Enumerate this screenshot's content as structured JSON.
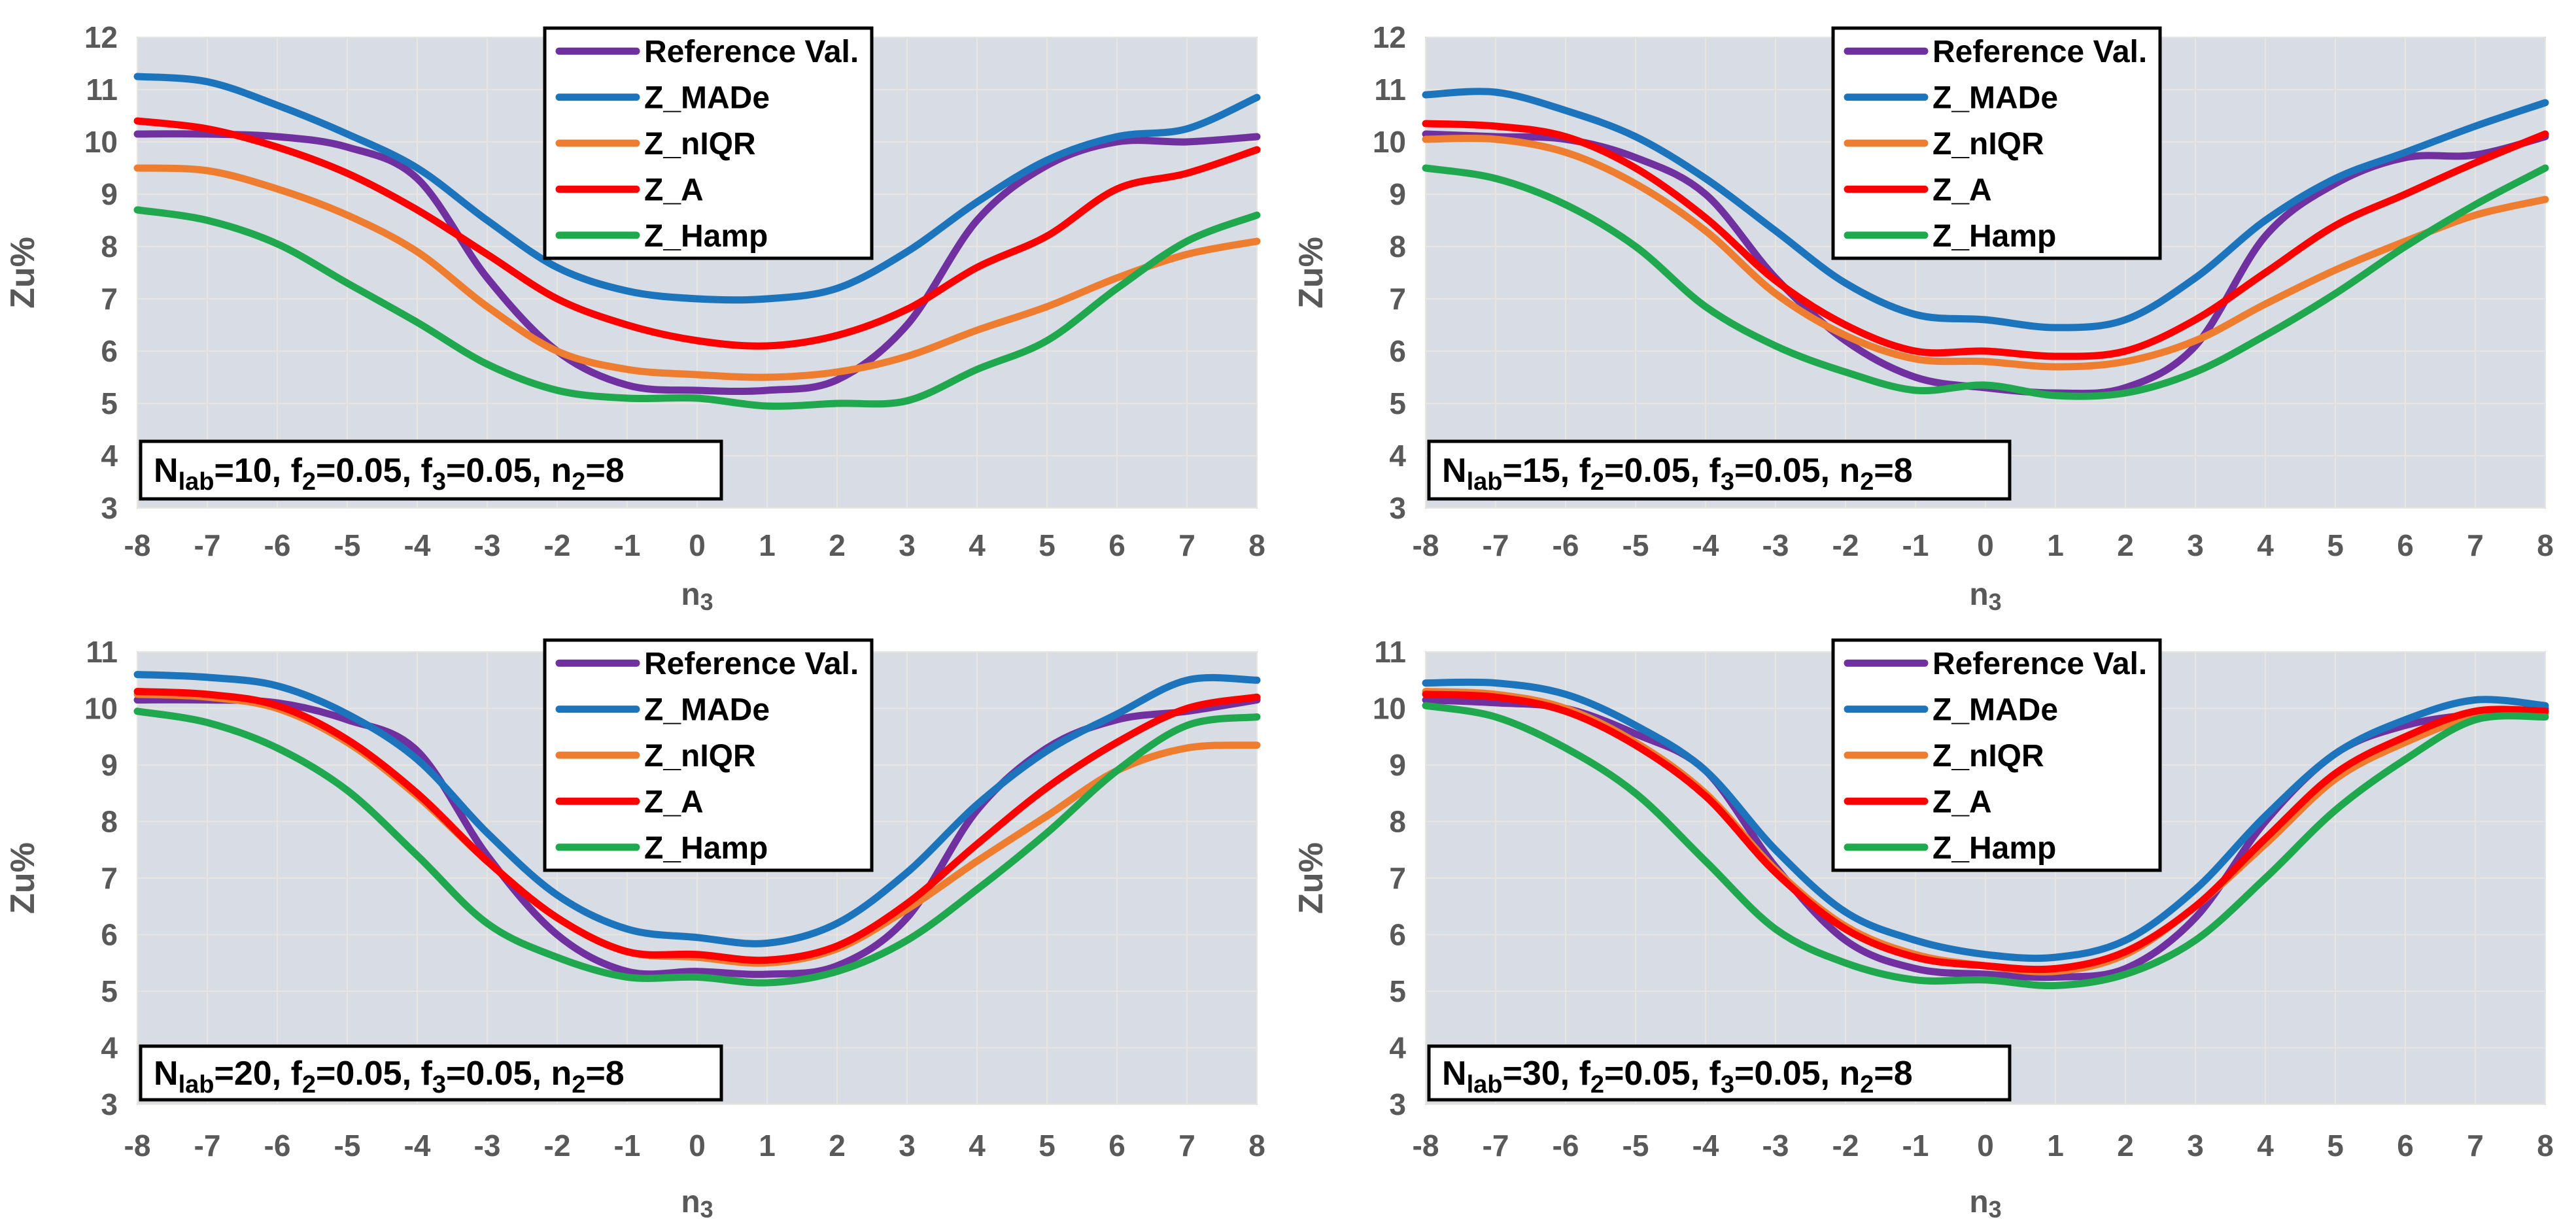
{
  "figure": {
    "rows": 2,
    "cols": 2,
    "plot_background": "#D7DCE5",
    "gridline_color": "#E8E5DE",
    "plot_border_color": "#C3C8D2",
    "tick_text_color": "#595959",
    "legend_border_color": "#000000",
    "legend_background": "#FFFFFF",
    "annotation_border_color": "#000000",
    "annotation_background": "#FFFFFF"
  },
  "series_colors": {
    "reference": "#7030A0",
    "z_made": "#1C75BC",
    "z_niqr": "#EE7D2F",
    "z_a": "#FE0000",
    "z_hamp": "#1FA84D"
  },
  "chart_data": [
    {
      "type": "line",
      "id": "nlab-10",
      "annotation_text": "Nlab=10, f2=0.05, f3=0.05, n2=8",
      "annotation_parts": [
        {
          "t": "N"
        },
        {
          "t": "lab",
          "sub": true
        },
        {
          "t": "=10, f"
        },
        {
          "t": "2",
          "sub": true
        },
        {
          "t": "=0.05, f"
        },
        {
          "t": "3",
          "sub": true
        },
        {
          "t": "=0.05, n"
        },
        {
          "t": "2",
          "sub": true
        },
        {
          "t": "=8"
        }
      ],
      "xlabel": "n3",
      "xlabel_base": "n",
      "xlabel_sub": "3",
      "ylabel": "Zu%",
      "ylim": [
        3,
        12
      ],
      "yticks": [
        12,
        11,
        10,
        9,
        8,
        7,
        6,
        5,
        4,
        3
      ],
      "x": [
        -8,
        -7,
        -6,
        -5,
        -4,
        -3,
        -2,
        -1,
        0,
        1,
        2,
        3,
        4,
        5,
        6,
        7,
        8
      ],
      "series": [
        {
          "name": "Reference Val.",
          "color": "#7030A0",
          "values": [
            10.15,
            10.15,
            10.1,
            9.9,
            9.3,
            7.4,
            6.0,
            5.35,
            5.25,
            5.25,
            5.45,
            6.5,
            8.5,
            9.55,
            10.0,
            10.0,
            10.1
          ]
        },
        {
          "name": "Z_MADe",
          "color": "#1C75BC",
          "values": [
            11.25,
            11.15,
            10.7,
            10.15,
            9.5,
            8.5,
            7.6,
            7.15,
            7.0,
            7.0,
            7.2,
            7.9,
            8.85,
            9.65,
            10.1,
            10.25,
            10.85
          ]
        },
        {
          "name": "Z_nIQR",
          "color": "#EE7D2F",
          "values": [
            9.5,
            9.45,
            9.1,
            8.6,
            7.9,
            6.85,
            6.0,
            5.65,
            5.55,
            5.5,
            5.6,
            5.9,
            6.4,
            6.85,
            7.4,
            7.85,
            8.1
          ]
        },
        {
          "name": "Z_A",
          "color": "#FE0000",
          "values": [
            10.4,
            10.25,
            9.9,
            9.4,
            8.7,
            7.85,
            7.0,
            6.5,
            6.2,
            6.1,
            6.3,
            6.8,
            7.6,
            8.2,
            9.1,
            9.4,
            9.85
          ]
        },
        {
          "name": "Z_Hamp",
          "color": "#1FA84D",
          "values": [
            8.7,
            8.5,
            8.05,
            7.3,
            6.55,
            5.75,
            5.25,
            5.1,
            5.1,
            4.95,
            5.0,
            5.05,
            5.65,
            6.2,
            7.2,
            8.1,
            8.6
          ]
        }
      ]
    },
    {
      "type": "line",
      "id": "nlab-15",
      "annotation_text": "Nlab=15, f2=0.05, f3=0.05, n2=8",
      "annotation_parts": [
        {
          "t": "N"
        },
        {
          "t": "lab",
          "sub": true
        },
        {
          "t": "=15, f"
        },
        {
          "t": "2",
          "sub": true
        },
        {
          "t": "=0.05, f"
        },
        {
          "t": "3",
          "sub": true
        },
        {
          "t": "=0.05, n"
        },
        {
          "t": "2",
          "sub": true
        },
        {
          "t": "=8"
        }
      ],
      "xlabel": "n3",
      "xlabel_base": "n",
      "xlabel_sub": "3",
      "ylabel": "Zu%",
      "ylim": [
        3,
        12
      ],
      "yticks": [
        12,
        11,
        10,
        9,
        8,
        7,
        6,
        5,
        4,
        3
      ],
      "x": [
        -8,
        -7,
        -6,
        -5,
        -4,
        -3,
        -2,
        -1,
        0,
        1,
        2,
        3,
        4,
        5,
        6,
        7,
        8
      ],
      "series": [
        {
          "name": "Reference Val.",
          "color": "#7030A0",
          "values": [
            10.15,
            10.1,
            10.05,
            9.7,
            9.0,
            7.4,
            6.2,
            5.5,
            5.3,
            5.2,
            5.3,
            6.1,
            8.2,
            9.2,
            9.7,
            9.75,
            10.1
          ]
        },
        {
          "name": "Z_MADe",
          "color": "#1C75BC",
          "values": [
            10.9,
            10.95,
            10.6,
            10.1,
            9.3,
            8.3,
            7.3,
            6.7,
            6.6,
            6.45,
            6.6,
            7.4,
            8.5,
            9.3,
            9.8,
            10.3,
            10.75
          ]
        },
        {
          "name": "Z_nIQR",
          "color": "#EE7D2F",
          "values": [
            10.05,
            10.05,
            9.8,
            9.2,
            8.3,
            7.1,
            6.3,
            5.85,
            5.8,
            5.7,
            5.8,
            6.2,
            6.9,
            7.55,
            8.1,
            8.6,
            8.9
          ]
        },
        {
          "name": "Z_A",
          "color": "#FE0000",
          "values": [
            10.35,
            10.3,
            10.1,
            9.5,
            8.55,
            7.35,
            6.5,
            6.0,
            6.0,
            5.9,
            6.0,
            6.6,
            7.5,
            8.4,
            9.0,
            9.6,
            10.15
          ]
        },
        {
          "name": "Z_Hamp",
          "color": "#1FA84D",
          "values": [
            9.5,
            9.3,
            8.8,
            8.0,
            6.85,
            6.1,
            5.6,
            5.25,
            5.35,
            5.15,
            5.2,
            5.6,
            6.3,
            7.1,
            8.0,
            8.8,
            9.5
          ]
        }
      ]
    },
    {
      "type": "line",
      "id": "nlab-20",
      "annotation_text": "Nlab=20, f2=0.05, f3=0.05, n2=8",
      "annotation_parts": [
        {
          "t": "N"
        },
        {
          "t": "lab",
          "sub": true
        },
        {
          "t": "=20, f"
        },
        {
          "t": "2",
          "sub": true
        },
        {
          "t": "=0.05, f"
        },
        {
          "t": "3",
          "sub": true
        },
        {
          "t": "=0.05, n"
        },
        {
          "t": "2",
          "sub": true
        },
        {
          "t": "=8"
        }
      ],
      "xlabel": "n3",
      "xlabel_base": "n",
      "xlabel_sub": "3",
      "ylabel": "Zu%",
      "ylim": [
        3,
        11
      ],
      "yticks": [
        11,
        10,
        9,
        8,
        7,
        6,
        5,
        4,
        3
      ],
      "x": [
        -8,
        -7,
        -6,
        -5,
        -4,
        -3,
        -2,
        -1,
        0,
        1,
        2,
        3,
        4,
        5,
        6,
        7,
        8
      ],
      "series": [
        {
          "name": "Reference Val.",
          "color": "#7030A0",
          "values": [
            10.15,
            10.15,
            10.1,
            9.8,
            9.25,
            7.4,
            6.0,
            5.35,
            5.35,
            5.3,
            5.45,
            6.3,
            8.2,
            9.3,
            9.8,
            9.95,
            10.15
          ]
        },
        {
          "name": "Z_MADe",
          "color": "#1C75BC",
          "values": [
            10.6,
            10.55,
            10.4,
            9.9,
            9.1,
            7.8,
            6.7,
            6.1,
            5.95,
            5.85,
            6.2,
            7.1,
            8.3,
            9.25,
            9.9,
            10.5,
            10.5
          ]
        },
        {
          "name": "Z_nIQR",
          "color": "#EE7D2F",
          "values": [
            10.25,
            10.2,
            10.0,
            9.4,
            8.45,
            7.3,
            6.3,
            5.7,
            5.6,
            5.5,
            5.75,
            6.45,
            7.3,
            8.1,
            8.9,
            9.3,
            9.35
          ]
        },
        {
          "name": "Z_A",
          "color": "#FE0000",
          "values": [
            10.3,
            10.25,
            10.05,
            9.45,
            8.5,
            7.3,
            6.3,
            5.7,
            5.65,
            5.55,
            5.8,
            6.55,
            7.6,
            8.6,
            9.4,
            10.0,
            10.2
          ]
        },
        {
          "name": "Z_Hamp",
          "color": "#1FA84D",
          "values": [
            9.95,
            9.75,
            9.3,
            8.55,
            7.4,
            6.2,
            5.6,
            5.25,
            5.25,
            5.15,
            5.35,
            5.9,
            6.8,
            7.8,
            8.9,
            9.7,
            9.85
          ]
        }
      ]
    },
    {
      "type": "line",
      "id": "nlab-30",
      "annotation_text": "Nlab=30, f2=0.05, f3=0.05, n2=8",
      "annotation_parts": [
        {
          "t": "N"
        },
        {
          "t": "lab",
          "sub": true
        },
        {
          "t": "=30, f"
        },
        {
          "t": "2",
          "sub": true
        },
        {
          "t": "=0.05, f"
        },
        {
          "t": "3",
          "sub": true
        },
        {
          "t": "=0.05, n"
        },
        {
          "t": "2",
          "sub": true
        },
        {
          "t": "=8"
        }
      ],
      "xlabel": "n3",
      "xlabel_base": "n",
      "xlabel_sub": "3",
      "ylabel": "Zu%",
      "ylim": [
        3,
        11
      ],
      "yticks": [
        11,
        10,
        9,
        8,
        7,
        6,
        5,
        4,
        3
      ],
      "x": [
        -8,
        -7,
        -6,
        -5,
        -4,
        -3,
        -2,
        -1,
        0,
        1,
        2,
        3,
        4,
        5,
        6,
        7,
        8
      ],
      "series": [
        {
          "name": "Reference Val.",
          "color": "#7030A0",
          "values": [
            10.15,
            10.1,
            10.0,
            9.55,
            8.9,
            7.2,
            5.9,
            5.4,
            5.3,
            5.25,
            5.4,
            6.3,
            8.0,
            9.2,
            9.7,
            9.9,
            10.0
          ]
        },
        {
          "name": "Z_MADe",
          "color": "#1C75BC",
          "values": [
            10.45,
            10.45,
            10.25,
            9.7,
            8.9,
            7.5,
            6.4,
            5.9,
            5.65,
            5.6,
            5.9,
            6.8,
            8.1,
            9.2,
            9.8,
            10.15,
            10.05
          ]
        },
        {
          "name": "Z_nIQR",
          "color": "#EE7D2F",
          "values": [
            10.3,
            10.25,
            10.0,
            9.4,
            8.5,
            7.15,
            6.15,
            5.65,
            5.45,
            5.35,
            5.65,
            6.5,
            7.6,
            8.75,
            9.4,
            9.85,
            9.9
          ]
        },
        {
          "name": "Z_A",
          "color": "#FE0000",
          "values": [
            10.25,
            10.2,
            9.95,
            9.35,
            8.45,
            7.1,
            6.1,
            5.6,
            5.45,
            5.4,
            5.7,
            6.5,
            7.7,
            8.85,
            9.5,
            9.95,
            9.95
          ]
        },
        {
          "name": "Z_Hamp",
          "color": "#1FA84D",
          "values": [
            10.05,
            9.85,
            9.3,
            8.5,
            7.3,
            6.1,
            5.5,
            5.2,
            5.2,
            5.1,
            5.3,
            5.9,
            7.0,
            8.2,
            9.1,
            9.8,
            9.85
          ]
        }
      ]
    }
  ]
}
